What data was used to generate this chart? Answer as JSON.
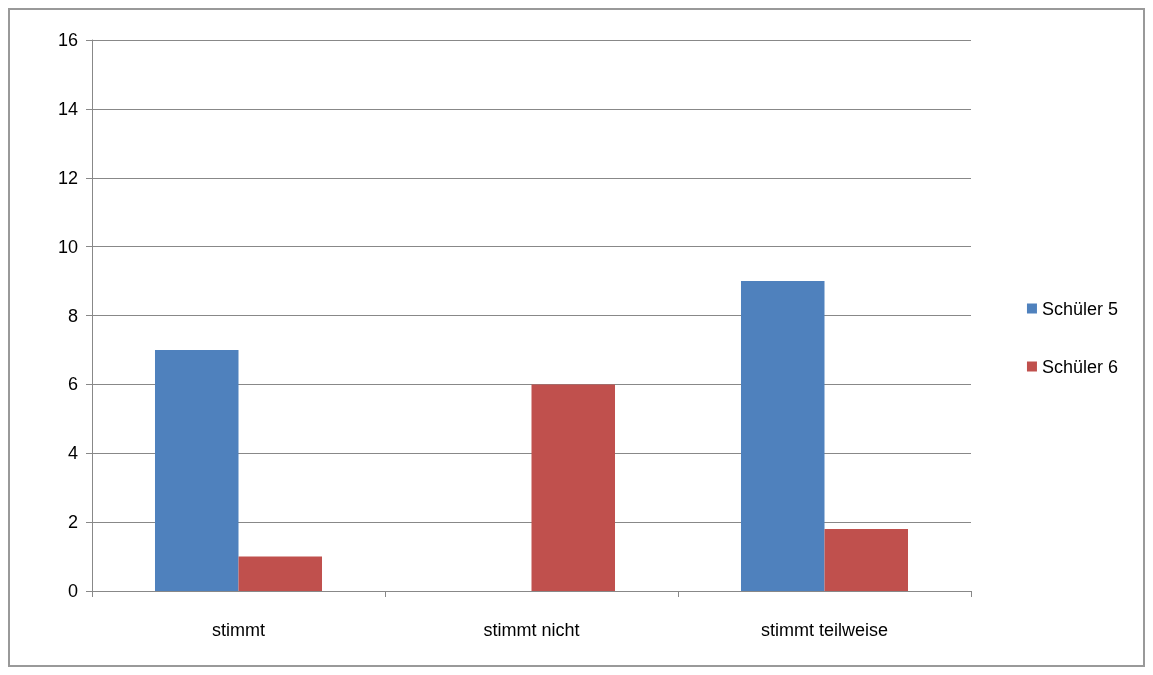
{
  "chart_data": {
    "type": "bar",
    "categories": [
      "stimmt",
      "stimmt nicht",
      "stimmt teilweise"
    ],
    "series": [
      {
        "name": "Schüler 5",
        "color": "#4f81bd",
        "values": [
          7,
          0,
          9
        ]
      },
      {
        "name": "Schüler 6",
        "color": "#c0504d",
        "values": [
          1,
          6,
          1.8
        ]
      }
    ],
    "ylim": [
      0,
      16
    ],
    "yticks": [
      0,
      2,
      4,
      6,
      8,
      10,
      12,
      14,
      16
    ],
    "grid": "y",
    "legend": "right"
  }
}
